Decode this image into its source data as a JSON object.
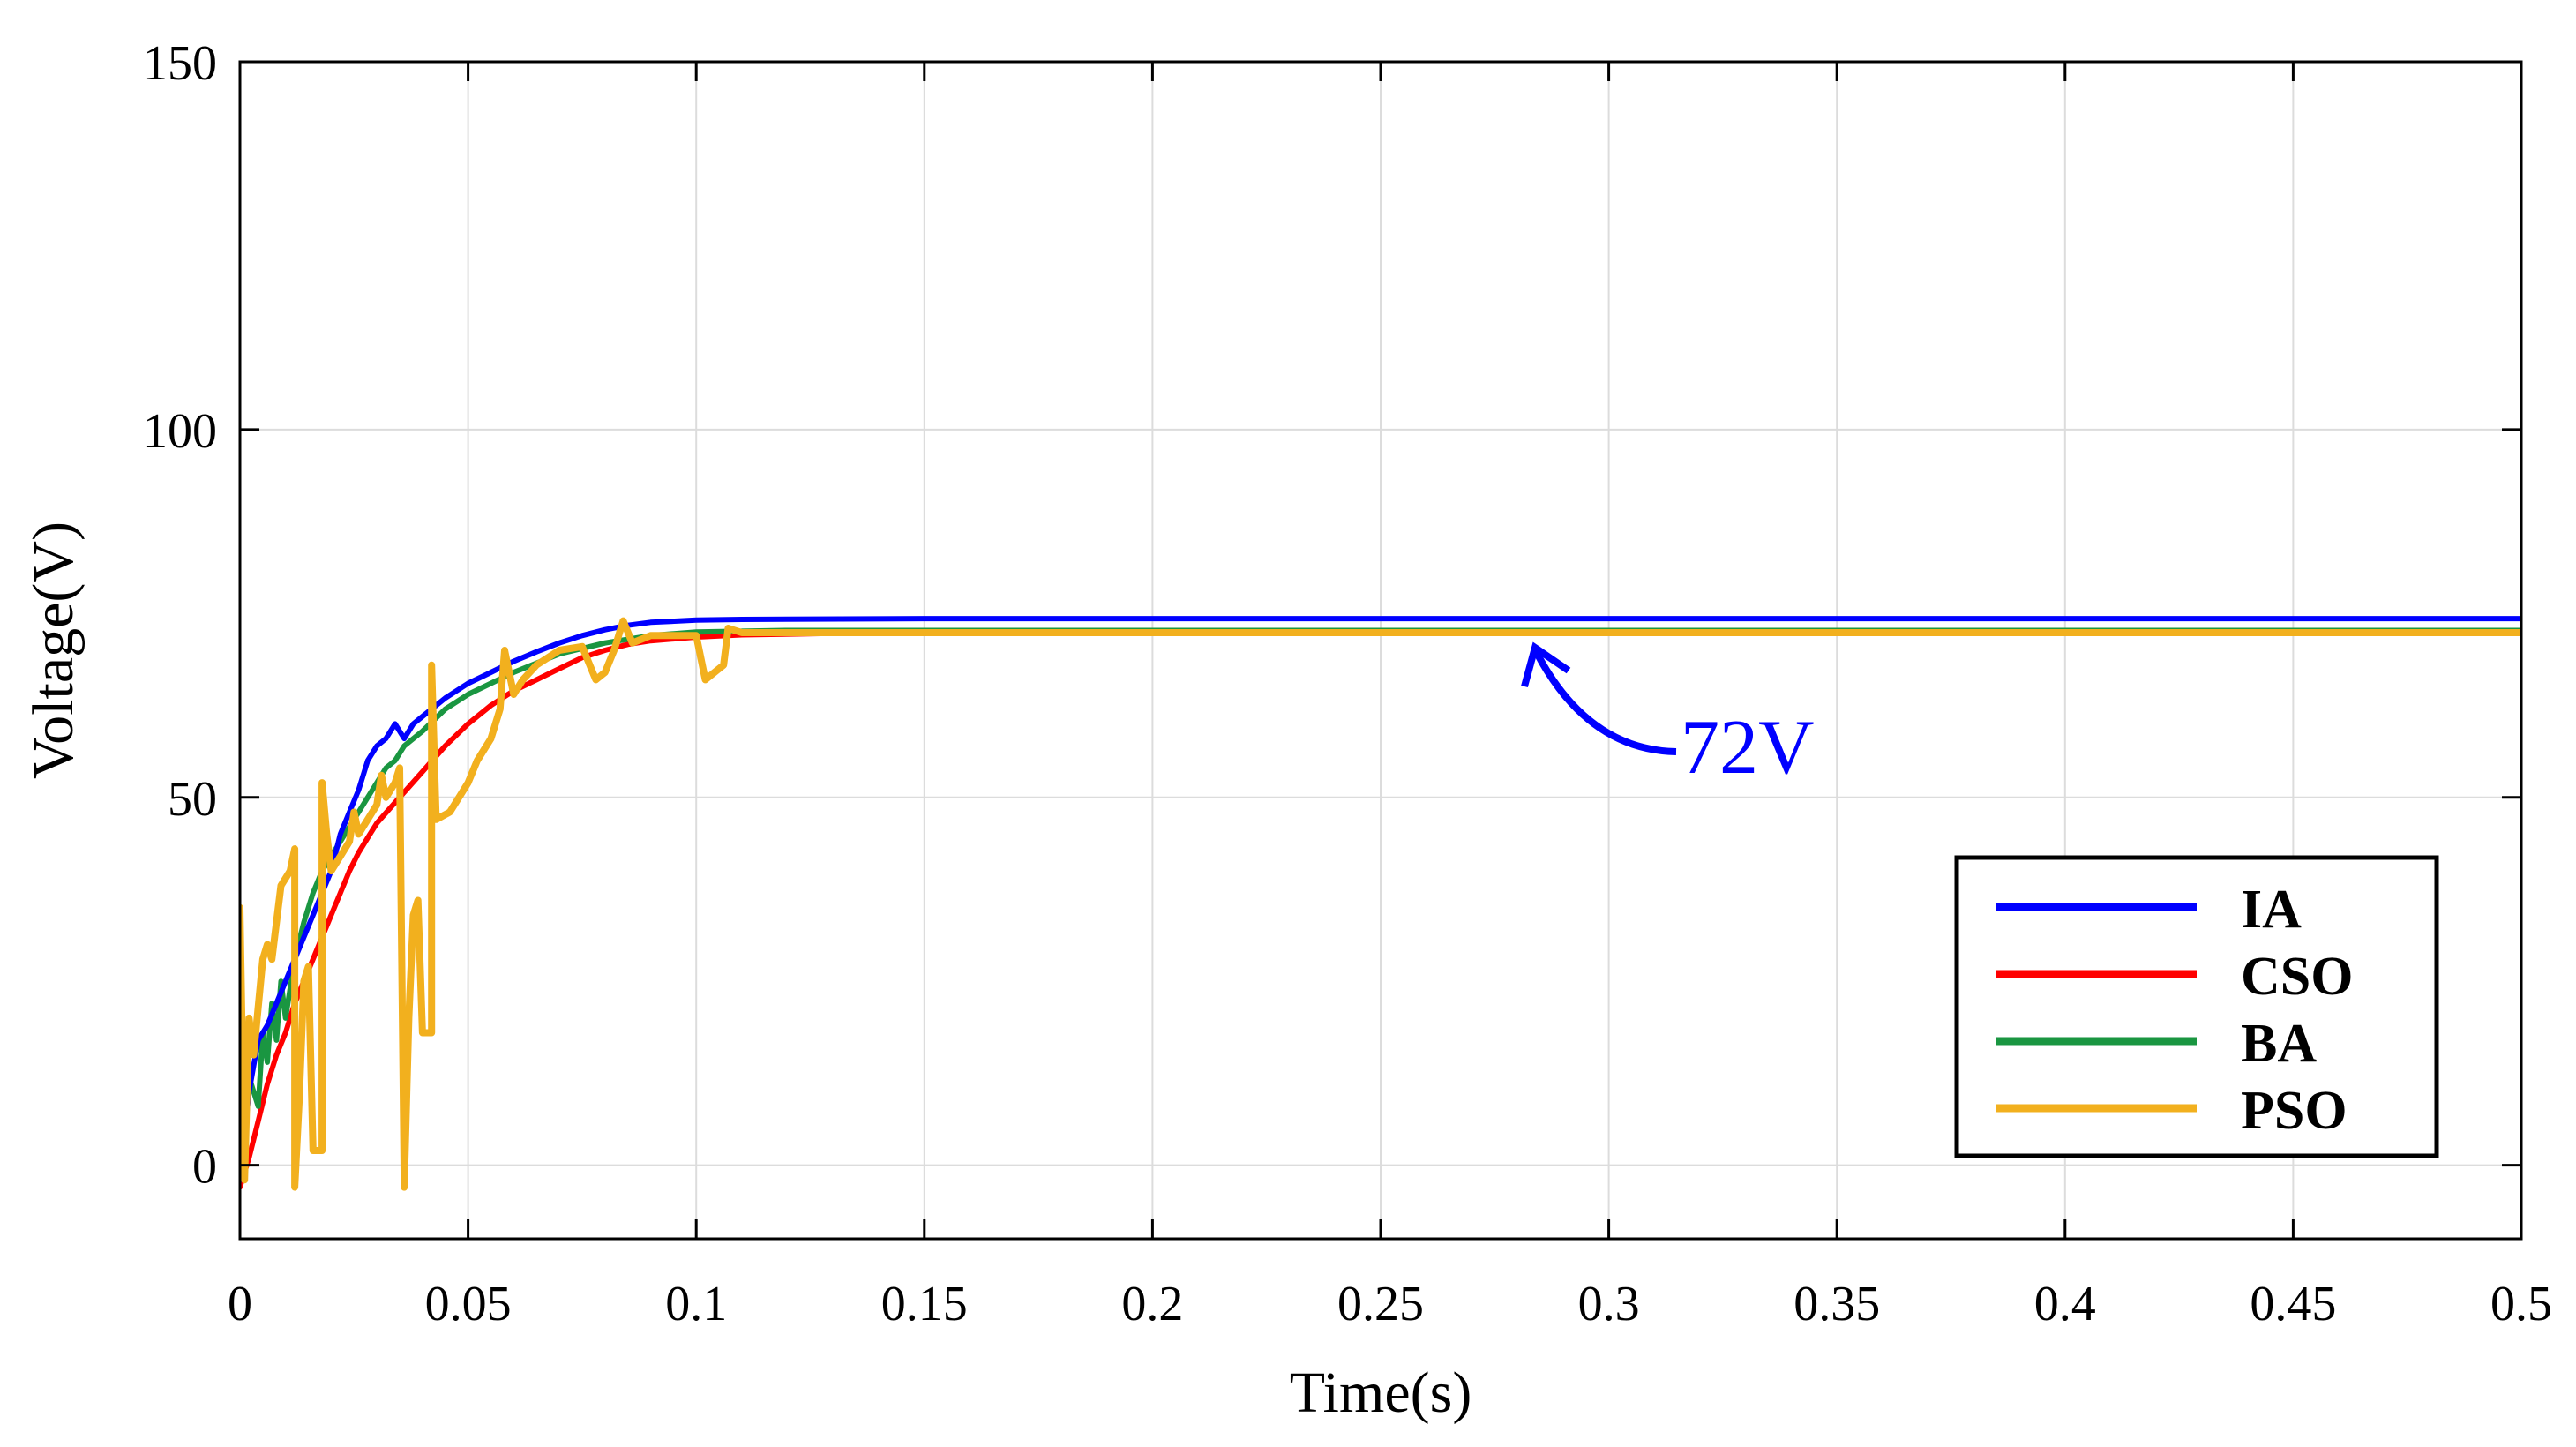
{
  "chart_data": {
    "type": "line",
    "title": "",
    "xlabel": "Time(s)",
    "ylabel": "Voltage(V)",
    "xlim": [
      0,
      0.5
    ],
    "ylim": [
      -10,
      150
    ],
    "x_ticks": [
      0,
      0.05,
      0.1,
      0.15,
      0.2,
      0.25,
      0.3,
      0.35,
      0.4,
      0.45,
      0.5
    ],
    "x_tick_labels": [
      "0",
      "0.05",
      "0.1",
      "0.15",
      "0.2",
      "0.25",
      "0.3",
      "0.35",
      "0.4",
      "0.45",
      "0.5"
    ],
    "y_ticks": [
      0,
      50,
      100,
      150
    ],
    "y_tick_labels": [
      "0",
      "50",
      "100",
      "150"
    ],
    "grid": true,
    "legend_position": "bottom-right",
    "annotation": {
      "text": "72V",
      "x": 0.285,
      "y": 72,
      "color": "#0000ff"
    },
    "series": [
      {
        "name": "IA",
        "color": "#0000ff",
        "points": [
          [
            0,
            -2
          ],
          [
            0.002,
            10
          ],
          [
            0.004,
            17
          ],
          [
            0.006,
            19
          ],
          [
            0.008,
            22
          ],
          [
            0.01,
            25
          ],
          [
            0.012,
            28
          ],
          [
            0.014,
            31
          ],
          [
            0.016,
            34
          ],
          [
            0.018,
            37
          ],
          [
            0.02,
            40
          ],
          [
            0.022,
            45
          ],
          [
            0.024,
            48
          ],
          [
            0.026,
            51
          ],
          [
            0.028,
            55
          ],
          [
            0.03,
            57
          ],
          [
            0.032,
            58
          ],
          [
            0.034,
            60
          ],
          [
            0.036,
            58
          ],
          [
            0.038,
            60
          ],
          [
            0.04,
            61
          ],
          [
            0.045,
            63.5
          ],
          [
            0.05,
            65.5
          ],
          [
            0.055,
            67
          ],
          [
            0.06,
            68.5
          ],
          [
            0.065,
            69.8
          ],
          [
            0.07,
            71
          ],
          [
            0.075,
            72
          ],
          [
            0.08,
            72.8
          ],
          [
            0.085,
            73.4
          ],
          [
            0.09,
            73.8
          ],
          [
            0.1,
            74.1
          ],
          [
            0.11,
            74.2
          ],
          [
            0.15,
            74.3
          ],
          [
            0.2,
            74.3
          ],
          [
            0.25,
            74.3
          ],
          [
            0.3,
            74.3
          ],
          [
            0.35,
            74.3
          ],
          [
            0.4,
            74.3
          ],
          [
            0.45,
            74.3
          ],
          [
            0.5,
            74.3
          ]
        ]
      },
      {
        "name": "CSO",
        "color": "#ff0000",
        "points": [
          [
            0,
            -3
          ],
          [
            0.002,
            1
          ],
          [
            0.004,
            6
          ],
          [
            0.006,
            11
          ],
          [
            0.008,
            15
          ],
          [
            0.01,
            18
          ],
          [
            0.012,
            22
          ],
          [
            0.014,
            25
          ],
          [
            0.016,
            28
          ],
          [
            0.018,
            31
          ],
          [
            0.02,
            34
          ],
          [
            0.022,
            37
          ],
          [
            0.024,
            40
          ],
          [
            0.026,
            42.5
          ],
          [
            0.028,
            44.5
          ],
          [
            0.03,
            46.5
          ],
          [
            0.035,
            50
          ],
          [
            0.04,
            53.5
          ],
          [
            0.045,
            57
          ],
          [
            0.05,
            60
          ],
          [
            0.055,
            62.5
          ],
          [
            0.06,
            64.5
          ],
          [
            0.065,
            66
          ],
          [
            0.07,
            67.5
          ],
          [
            0.075,
            69
          ],
          [
            0.08,
            70
          ],
          [
            0.085,
            70.8
          ],
          [
            0.09,
            71.3
          ],
          [
            0.1,
            71.8
          ],
          [
            0.11,
            72.1
          ],
          [
            0.13,
            72.3
          ],
          [
            0.15,
            72.4
          ],
          [
            0.2,
            72.4
          ],
          [
            0.25,
            72.4
          ],
          [
            0.3,
            72.4
          ],
          [
            0.35,
            72.4
          ],
          [
            0.4,
            72.4
          ],
          [
            0.45,
            72.4
          ],
          [
            0.5,
            72.4
          ]
        ]
      },
      {
        "name": "BA",
        "color": "#1a9641",
        "points": [
          [
            0,
            5
          ],
          [
            0.002,
            12
          ],
          [
            0.004,
            8
          ],
          [
            0.005,
            18
          ],
          [
            0.006,
            14
          ],
          [
            0.007,
            22
          ],
          [
            0.008,
            17
          ],
          [
            0.009,
            25
          ],
          [
            0.01,
            20
          ],
          [
            0.012,
            28
          ],
          [
            0.014,
            33
          ],
          [
            0.016,
            37
          ],
          [
            0.018,
            40
          ],
          [
            0.02,
            42
          ],
          [
            0.022,
            44
          ],
          [
            0.024,
            46
          ],
          [
            0.026,
            48
          ],
          [
            0.028,
            50
          ],
          [
            0.03,
            52
          ],
          [
            0.032,
            54
          ],
          [
            0.034,
            55
          ],
          [
            0.036,
            57
          ],
          [
            0.04,
            59
          ],
          [
            0.045,
            62
          ],
          [
            0.05,
            64
          ],
          [
            0.06,
            67
          ],
          [
            0.07,
            69.5
          ],
          [
            0.08,
            71
          ],
          [
            0.09,
            72
          ],
          [
            0.1,
            72.5
          ],
          [
            0.12,
            72.7
          ],
          [
            0.15,
            72.7
          ],
          [
            0.2,
            72.7
          ],
          [
            0.25,
            72.7
          ],
          [
            0.3,
            72.7
          ],
          [
            0.35,
            72.7
          ],
          [
            0.4,
            72.7
          ],
          [
            0.45,
            72.7
          ],
          [
            0.5,
            72.7
          ]
        ]
      },
      {
        "name": "PSO",
        "color": "#f2b01e",
        "points": [
          [
            0,
            35
          ],
          [
            0.001,
            -2
          ],
          [
            0.002,
            20
          ],
          [
            0.003,
            15
          ],
          [
            0.005,
            28
          ],
          [
            0.006,
            30
          ],
          [
            0.007,
            28
          ],
          [
            0.009,
            38
          ],
          [
            0.011,
            40
          ],
          [
            0.012,
            43
          ],
          [
            0.012,
            -3
          ],
          [
            0.013,
            9
          ],
          [
            0.014,
            25
          ],
          [
            0.015,
            27
          ],
          [
            0.016,
            2
          ],
          [
            0.018,
            2
          ],
          [
            0.018,
            52
          ],
          [
            0.019,
            45
          ],
          [
            0.02,
            40
          ],
          [
            0.022,
            42
          ],
          [
            0.024,
            44
          ],
          [
            0.025,
            48
          ],
          [
            0.026,
            45
          ],
          [
            0.028,
            47
          ],
          [
            0.03,
            49
          ],
          [
            0.031,
            53
          ],
          [
            0.032,
            50
          ],
          [
            0.034,
            52
          ],
          [
            0.035,
            54
          ],
          [
            0.036,
            -3
          ],
          [
            0.037,
            20
          ],
          [
            0.038,
            34
          ],
          [
            0.039,
            36
          ],
          [
            0.04,
            18
          ],
          [
            0.042,
            18
          ],
          [
            0.042,
            68
          ],
          [
            0.043,
            47
          ],
          [
            0.046,
            48
          ],
          [
            0.048,
            50
          ],
          [
            0.05,
            52
          ],
          [
            0.052,
            55
          ],
          [
            0.055,
            58
          ],
          [
            0.057,
            62
          ],
          [
            0.058,
            70
          ],
          [
            0.06,
            64
          ],
          [
            0.062,
            66
          ],
          [
            0.065,
            68
          ],
          [
            0.07,
            70
          ],
          [
            0.075,
            70.5
          ],
          [
            0.078,
            66
          ],
          [
            0.08,
            67
          ],
          [
            0.082,
            70
          ],
          [
            0.084,
            74
          ],
          [
            0.086,
            71
          ],
          [
            0.088,
            71.5
          ],
          [
            0.09,
            72
          ],
          [
            0.095,
            72
          ],
          [
            0.1,
            72
          ],
          [
            0.102,
            66
          ],
          [
            0.104,
            67
          ],
          [
            0.106,
            68
          ],
          [
            0.107,
            73
          ],
          [
            0.11,
            72.4
          ],
          [
            0.12,
            72.4
          ],
          [
            0.15,
            72.4
          ],
          [
            0.2,
            72.4
          ],
          [
            0.25,
            72.4
          ],
          [
            0.3,
            72.4
          ],
          [
            0.35,
            72.4
          ],
          [
            0.4,
            72.4
          ],
          [
            0.45,
            72.4
          ],
          [
            0.5,
            72.4
          ]
        ]
      }
    ]
  }
}
